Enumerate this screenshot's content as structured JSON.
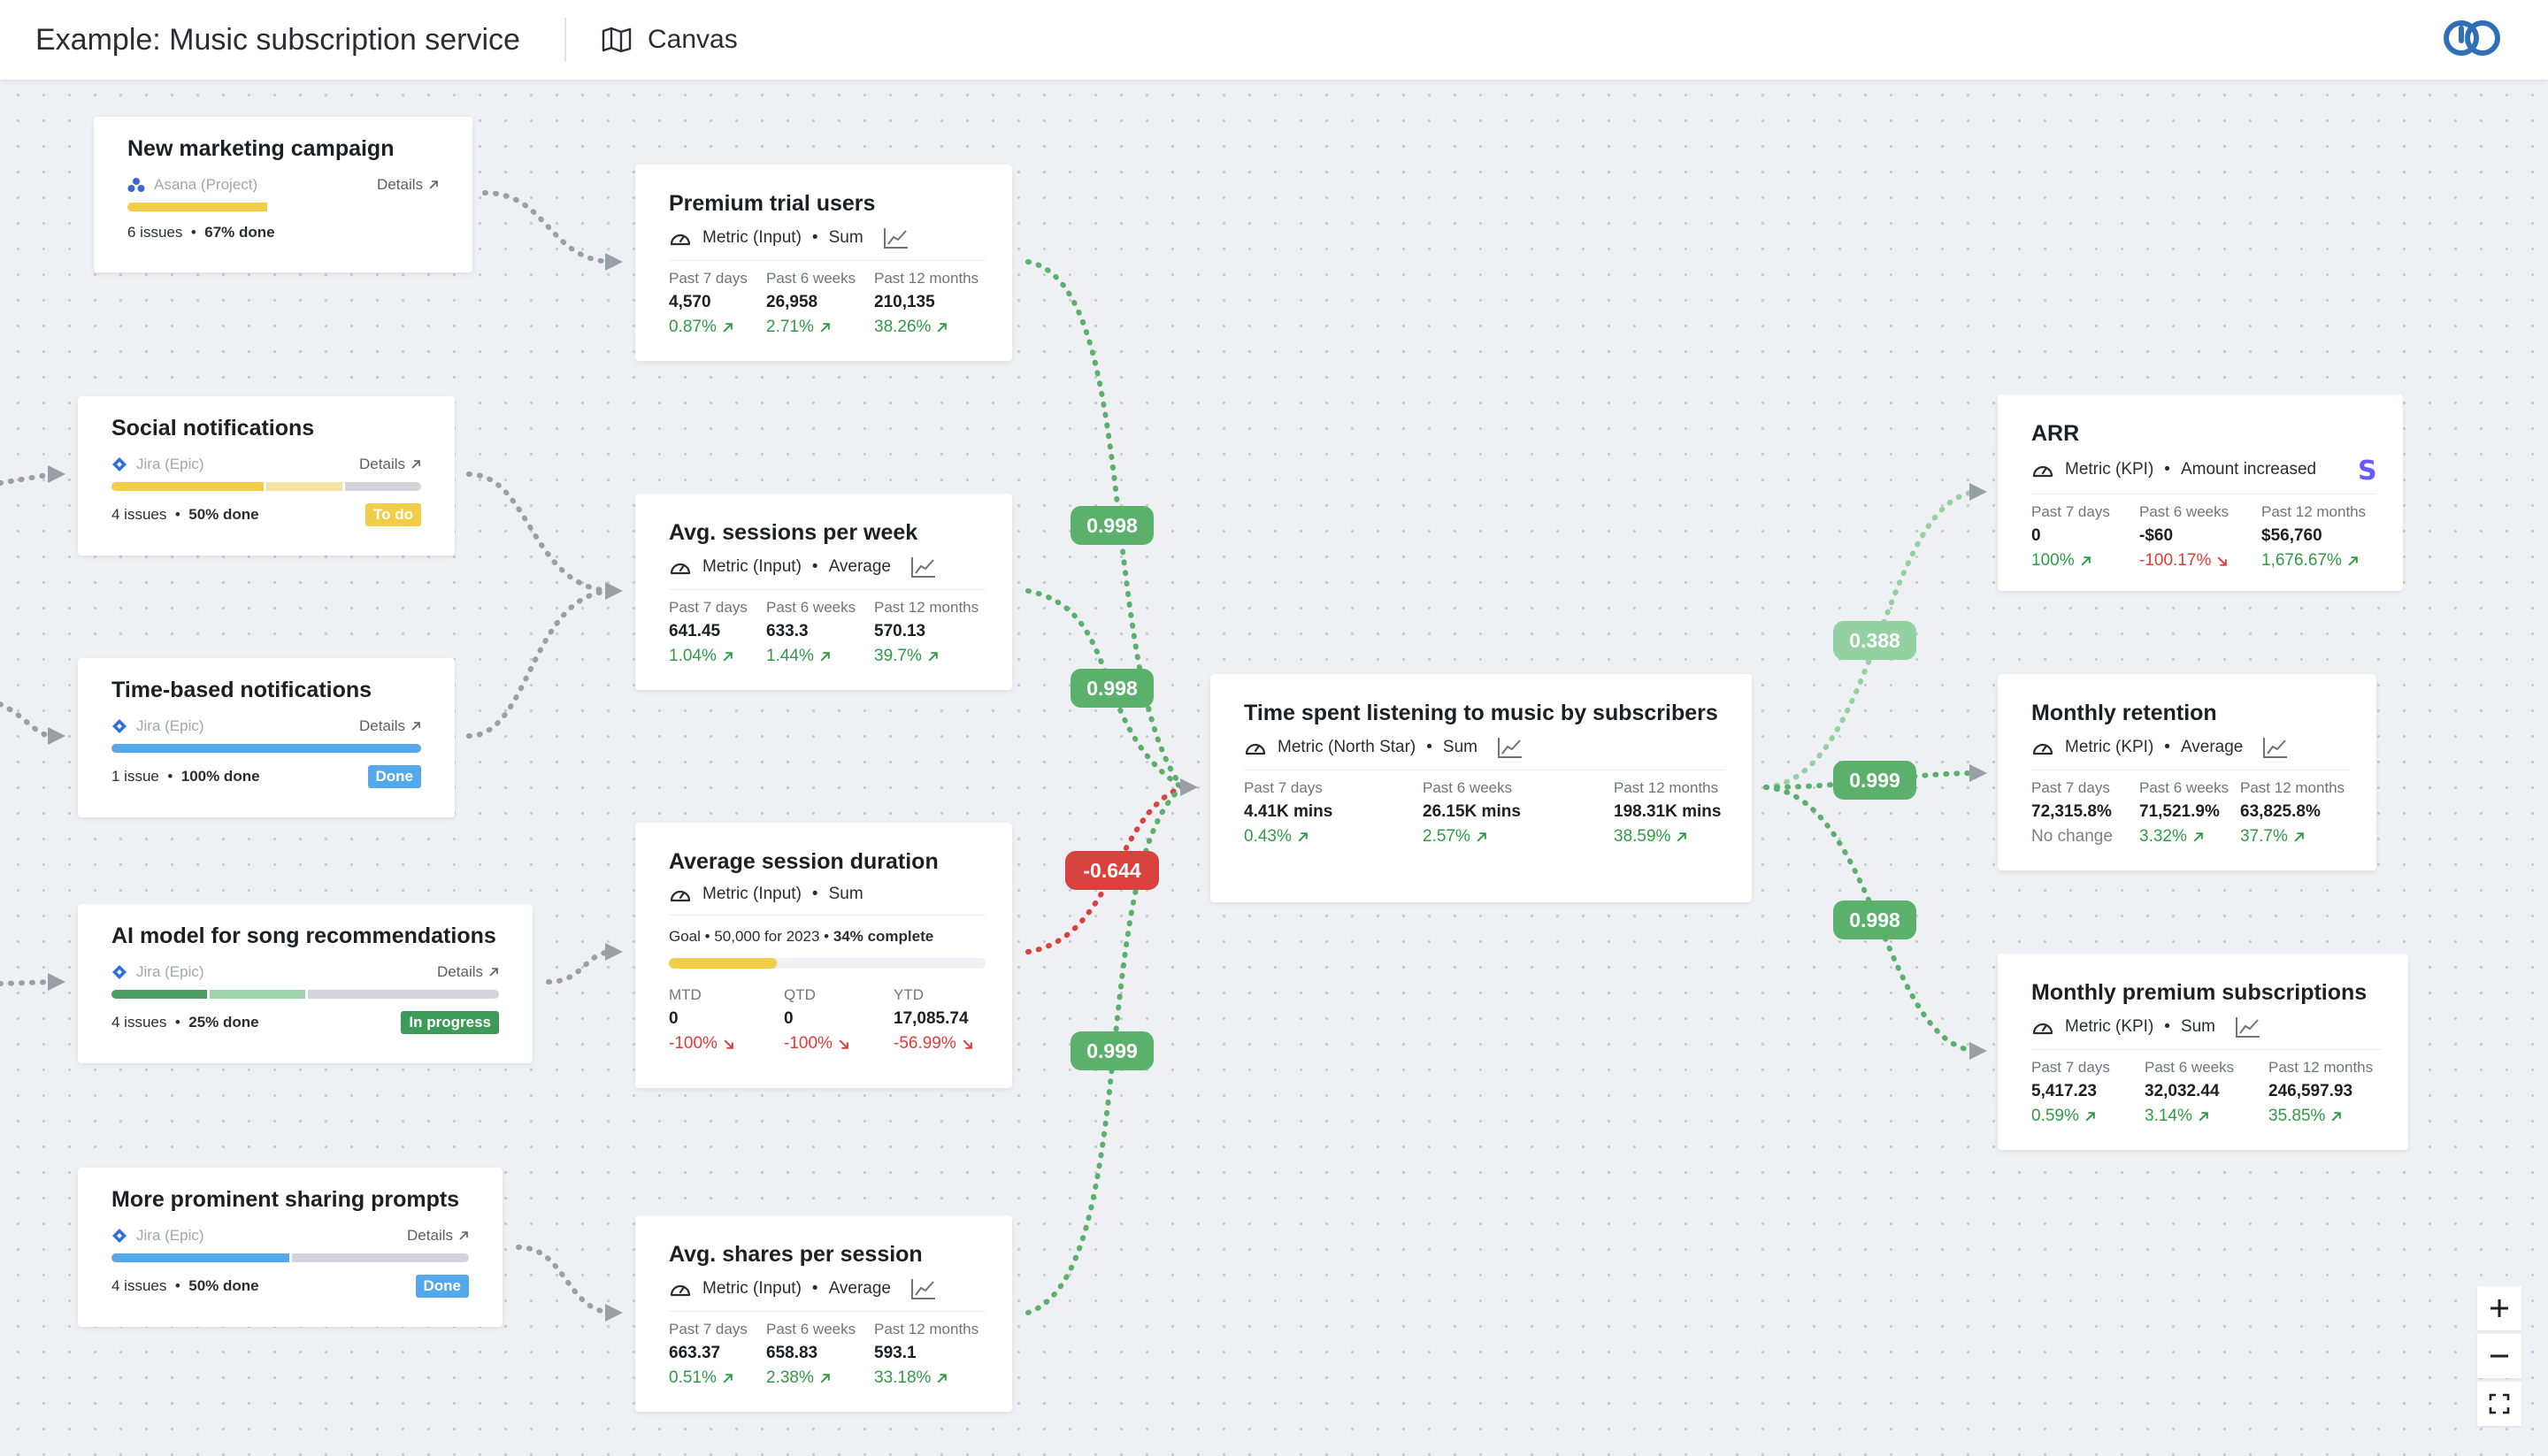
{
  "header": {
    "title": "Example: Music subscription service",
    "canvas_label": "Canvas"
  },
  "issues": [
    {
      "title": "New marketing campaign",
      "source": "Asana (Project)",
      "details": "Details",
      "count": "6 issues",
      "done": "67% done",
      "status": "",
      "progress": [
        {
          "fraction": 0.67,
          "color": "#f2cd48"
        }
      ]
    },
    {
      "title": "Social notifications",
      "source": "Jira (Epic)",
      "details": "Details",
      "count": "4 issues",
      "done": "50% done",
      "status": "To do",
      "status_color": "#f2cd48",
      "progress": [
        {
          "fraction": 0.5,
          "color": "#f2cd48"
        },
        {
          "fraction": 0.25,
          "color": "#f6e3a3"
        },
        {
          "fraction": 0.25,
          "color": "#d2d6dc"
        }
      ]
    },
    {
      "title": "Time-based notifications",
      "source": "Jira (Epic)",
      "details": "Details",
      "count": "1 issue",
      "done": "100% done",
      "status": "Done",
      "status_color": "#54a9ec",
      "progress": [
        {
          "fraction": 1.0,
          "color": "#54a9ec"
        }
      ]
    },
    {
      "title": "AI model for song recommendations",
      "source": "Jira (Epic)",
      "details": "Details",
      "count": "4 issues",
      "done": "25% done",
      "status": "In progress",
      "status_color": "#3e9a58",
      "progress": [
        {
          "fraction": 0.25,
          "color": "#4c9d61"
        },
        {
          "fraction": 0.25,
          "color": "#9fd3ac"
        },
        {
          "fraction": 0.5,
          "color": "#d2d6dc"
        }
      ]
    },
    {
      "title": "More prominent sharing prompts",
      "source": "Jira (Epic)",
      "details": "Details",
      "count": "4 issues",
      "done": "50% done",
      "status": "Done",
      "status_color": "#54a9ec",
      "progress": [
        {
          "fraction": 0.5,
          "color": "#54a9ec"
        },
        {
          "fraction": 0.5,
          "color": "#d2d6dc"
        }
      ]
    }
  ],
  "metrics": {
    "premium_trial": {
      "title": "Premium trial users",
      "type": "Metric (Input)",
      "agg": "Sum",
      "stats": [
        {
          "label": "Past 7 days",
          "value": "4,570",
          "change": "0.87%",
          "dir": "up"
        },
        {
          "label": "Past 6 weeks",
          "value": "26,958",
          "change": "2.71%",
          "dir": "up"
        },
        {
          "label": "Past 12 months",
          "value": "210,135",
          "change": "38.26%",
          "dir": "up"
        }
      ]
    },
    "avg_sessions": {
      "title": "Avg. sessions per week",
      "type": "Metric (Input)",
      "agg": "Average",
      "stats": [
        {
          "label": "Past 7 days",
          "value": "641.45",
          "change": "1.04%",
          "dir": "up"
        },
        {
          "label": "Past 6 weeks",
          "value": "633.3",
          "change": "1.44%",
          "dir": "up"
        },
        {
          "label": "Past 12 months",
          "value": "570.13",
          "change": "39.7%",
          "dir": "up"
        }
      ]
    },
    "avg_duration": {
      "title": "Average session duration",
      "type": "Metric (Input)",
      "agg": "Sum",
      "goal_prefix": "Goal",
      "goal_text": "50,000 for 2023",
      "goal_complete": "34% complete",
      "goal_fraction": 0.34,
      "stats": [
        {
          "label": "MTD",
          "value": "0",
          "change": "-100%",
          "dir": "down"
        },
        {
          "label": "QTD",
          "value": "0",
          "change": "-100%",
          "dir": "down"
        },
        {
          "label": "YTD",
          "value": "17,085.74",
          "change": "-56.99%",
          "dir": "down"
        }
      ]
    },
    "avg_shares": {
      "title": "Avg. shares per session",
      "type": "Metric (Input)",
      "agg": "Average",
      "stats": [
        {
          "label": "Past 7 days",
          "value": "663.37",
          "change": "0.51%",
          "dir": "up"
        },
        {
          "label": "Past 6 weeks",
          "value": "658.83",
          "change": "2.38%",
          "dir": "up"
        },
        {
          "label": "Past 12 months",
          "value": "593.1",
          "change": "33.18%",
          "dir": "up"
        }
      ]
    },
    "north_star": {
      "title": "Time spent listening to music by subscribers",
      "type": "Metric (North Star)",
      "agg": "Sum",
      "stats": [
        {
          "label": "Past 7 days",
          "value": "4.41K mins",
          "change": "0.43%",
          "dir": "up"
        },
        {
          "label": "Past 6 weeks",
          "value": "26.15K mins",
          "change": "2.57%",
          "dir": "up"
        },
        {
          "label": "Past 12 months",
          "value": "198.31K mins",
          "change": "38.59%",
          "dir": "up"
        }
      ]
    },
    "arr": {
      "title": "ARR",
      "type": "Metric (KPI)",
      "agg": "Amount increased",
      "stats": [
        {
          "label": "Past 7 days",
          "value": "0",
          "change": "100%",
          "dir": "up"
        },
        {
          "label": "Past 6 weeks",
          "value": "-$60",
          "change": "-100.17%",
          "dir": "down"
        },
        {
          "label": "Past 12 months",
          "value": "$56,760",
          "change": "1,676.67%",
          "dir": "up"
        }
      ]
    },
    "retention": {
      "title": "Monthly retention",
      "type": "Metric (KPI)",
      "agg": "Average",
      "stats": [
        {
          "label": "Past 7 days",
          "value": "72,315.8%",
          "change": "No change",
          "dir": "none"
        },
        {
          "label": "Past 6 weeks",
          "value": "71,521.9%",
          "change": "3.32%",
          "dir": "up"
        },
        {
          "label": "Past 12 months",
          "value": "63,825.8%",
          "change": "37.7%",
          "dir": "up"
        }
      ]
    },
    "premium_subs": {
      "title": "Monthly premium subscriptions",
      "type": "Metric (KPI)",
      "agg": "Sum",
      "stats": [
        {
          "label": "Past 7 days",
          "value": "5,417.23",
          "change": "0.59%",
          "dir": "up"
        },
        {
          "label": "Past 6 weeks",
          "value": "32,032.44",
          "change": "3.14%",
          "dir": "up"
        },
        {
          "label": "Past 12 months",
          "value": "246,597.93",
          "change": "35.85%",
          "dir": "up"
        }
      ]
    }
  },
  "correlations": [
    {
      "value": "0.998",
      "color": "#5bb16b"
    },
    {
      "value": "0.998",
      "color": "#5bb16b"
    },
    {
      "value": "-0.644",
      "color": "#d9433f"
    },
    {
      "value": "0.999",
      "color": "#5bb16b"
    },
    {
      "value": "0.388",
      "color": "#93d0a2"
    },
    {
      "value": "0.999",
      "color": "#5bb16b"
    },
    {
      "value": "0.998",
      "color": "#5bb16b"
    }
  ],
  "colors": {
    "positive": "#2e9b45",
    "negative": "#e03b37",
    "connector_positive": "#5bb16b",
    "connector_negative": "#d9433f",
    "connector_neutral": "#9a9ea5"
  },
  "controls": {
    "zoom_in": "+",
    "zoom_out": "−"
  }
}
